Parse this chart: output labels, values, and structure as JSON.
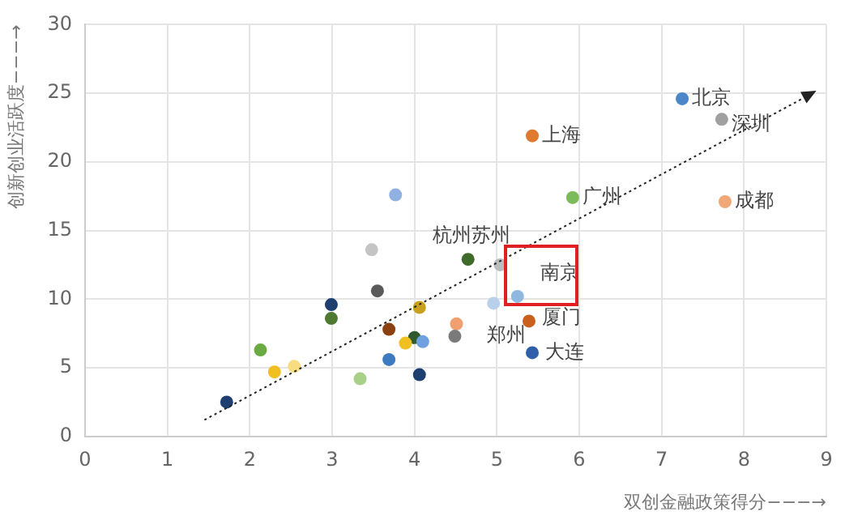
{
  "chart_data": {
    "type": "scatter",
    "xlabel": "双创金融政策得分−−−→",
    "ylabel": "创新创业活跃度−−−→",
    "xlim": [
      0,
      9
    ],
    "xticks": [
      0,
      1,
      2,
      3,
      4,
      5,
      6,
      7,
      8,
      9
    ],
    "ylim": [
      0,
      30
    ],
    "yticks": [
      0,
      5,
      10,
      15,
      20,
      25,
      30
    ],
    "grid": true,
    "legend": false,
    "marker": "circle",
    "series": [
      {
        "type": "line",
        "marker": "triangle",
        "line_style": "dotted",
        "color": "#222222",
        "x": [
          1.45,
          8.8
        ],
        "values": [
          1.2,
          24.9
        ]
      },
      {
        "x": [
          7.25,
          7.73,
          5.43,
          5.92,
          7.77,
          4.65,
          5.04,
          5.25,
          4.96,
          5.39,
          5.43,
          3.77,
          3.48,
          3.55,
          2.99,
          2.99,
          4.06,
          3.69,
          4.51,
          4.49,
          4.0,
          3.89,
          4.1,
          3.69,
          3.34,
          4.06,
          1.72,
          2.13,
          2.3,
          2.54
        ],
        "values": [
          24.6,
          23.1,
          21.9,
          17.4,
          17.1,
          12.9,
          12.5,
          10.2,
          9.7,
          8.4,
          6.1,
          17.6,
          13.6,
          10.6,
          9.6,
          8.6,
          9.4,
          7.8,
          8.2,
          7.3,
          7.2,
          6.8,
          6.9,
          5.6,
          4.2,
          4.5,
          2.5,
          6.3,
          4.7,
          5.1
        ],
        "colors": [
          "#4a86c8",
          "#a0a0a0",
          "#e07a2e",
          "#7cba5a",
          "#f0a878",
          "#3e6b2a",
          "#bcbcbc",
          "#8fb8e0",
          "#b8d0ea",
          "#c8601e",
          "#2f5fa8",
          "#8fb0e0",
          "#c4c4c4",
          "#5a5a5a",
          "#1f3f70",
          "#4d7a30",
          "#c8a020",
          "#8a4010",
          "#f0a070",
          "#7a7a7a",
          "#2e5a2e",
          "#f0c020",
          "#6fa0e0",
          "#3e7ac0",
          "#a8d088",
          "#1f3f70",
          "#1f3f70",
          "#6aaa40",
          "#f0c020",
          "#f8dc80"
        ]
      }
    ],
    "annotations": [
      {
        "text": "北京",
        "x": 7.25,
        "y": 24.6
      },
      {
        "text": "深圳",
        "x": 7.73,
        "y": 23.1
      },
      {
        "text": "上海",
        "x": 5.43,
        "y": 21.9
      },
      {
        "text": "广州",
        "x": 5.92,
        "y": 17.4
      },
      {
        "text": "成都",
        "x": 7.77,
        "y": 17.1
      },
      {
        "text": "杭州苏州",
        "x": 4.65,
        "y": 12.9
      },
      {
        "text": "南京",
        "x": 5.25,
        "y": 10.2
      },
      {
        "text": "郑州",
        "x": 4.96,
        "y": 9.7
      },
      {
        "text": "厦门",
        "x": 5.39,
        "y": 8.4
      },
      {
        "text": "大连",
        "x": 5.43,
        "y": 6.1
      }
    ]
  }
}
